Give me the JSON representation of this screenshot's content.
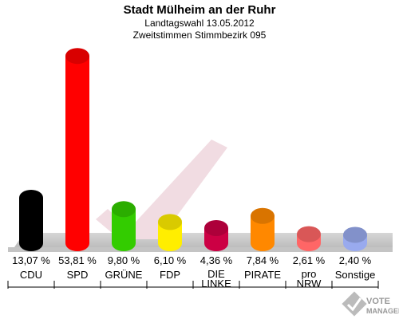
{
  "chart_data": {
    "type": "bar",
    "title": "Stadt Mülheim an der Ruhr",
    "subtitle_1": "Landtagswahl 13.05.2012",
    "subtitle_2": "Zweitstimmen Stimmbezirk 095",
    "categories": [
      "CDU",
      "SPD",
      "GRÜNE",
      "FDP",
      "DIE LINKE",
      "PIRATE",
      "pro NRW",
      "Sonstige"
    ],
    "category_lines": [
      [
        "CDU"
      ],
      [
        "SPD"
      ],
      [
        "GRÜNE"
      ],
      [
        "FDP"
      ],
      [
        "DIE",
        "LINKE"
      ],
      [
        "PIRATE"
      ],
      [
        "pro",
        "NRW"
      ],
      [
        "Sonstige"
      ]
    ],
    "values": [
      13.07,
      53.81,
      9.8,
      6.1,
      4.36,
      7.84,
      2.61,
      2.4
    ],
    "value_labels": [
      "13,07 %",
      "53,81 %",
      "9,80 %",
      "6,10 %",
      "4,36 %",
      "7,84 %",
      "2,61 %",
      "2,40 %"
    ],
    "colors": [
      "#000000",
      "#ff0000",
      "#33cc00",
      "#ffee00",
      "#cc0044",
      "#ff8800",
      "#ff6666",
      "#99aaee"
    ],
    "ylim": [
      0,
      55
    ],
    "grid": false,
    "legend": "none"
  },
  "watermark": {
    "line1": "VOTE",
    "line2": "MANAGER"
  }
}
